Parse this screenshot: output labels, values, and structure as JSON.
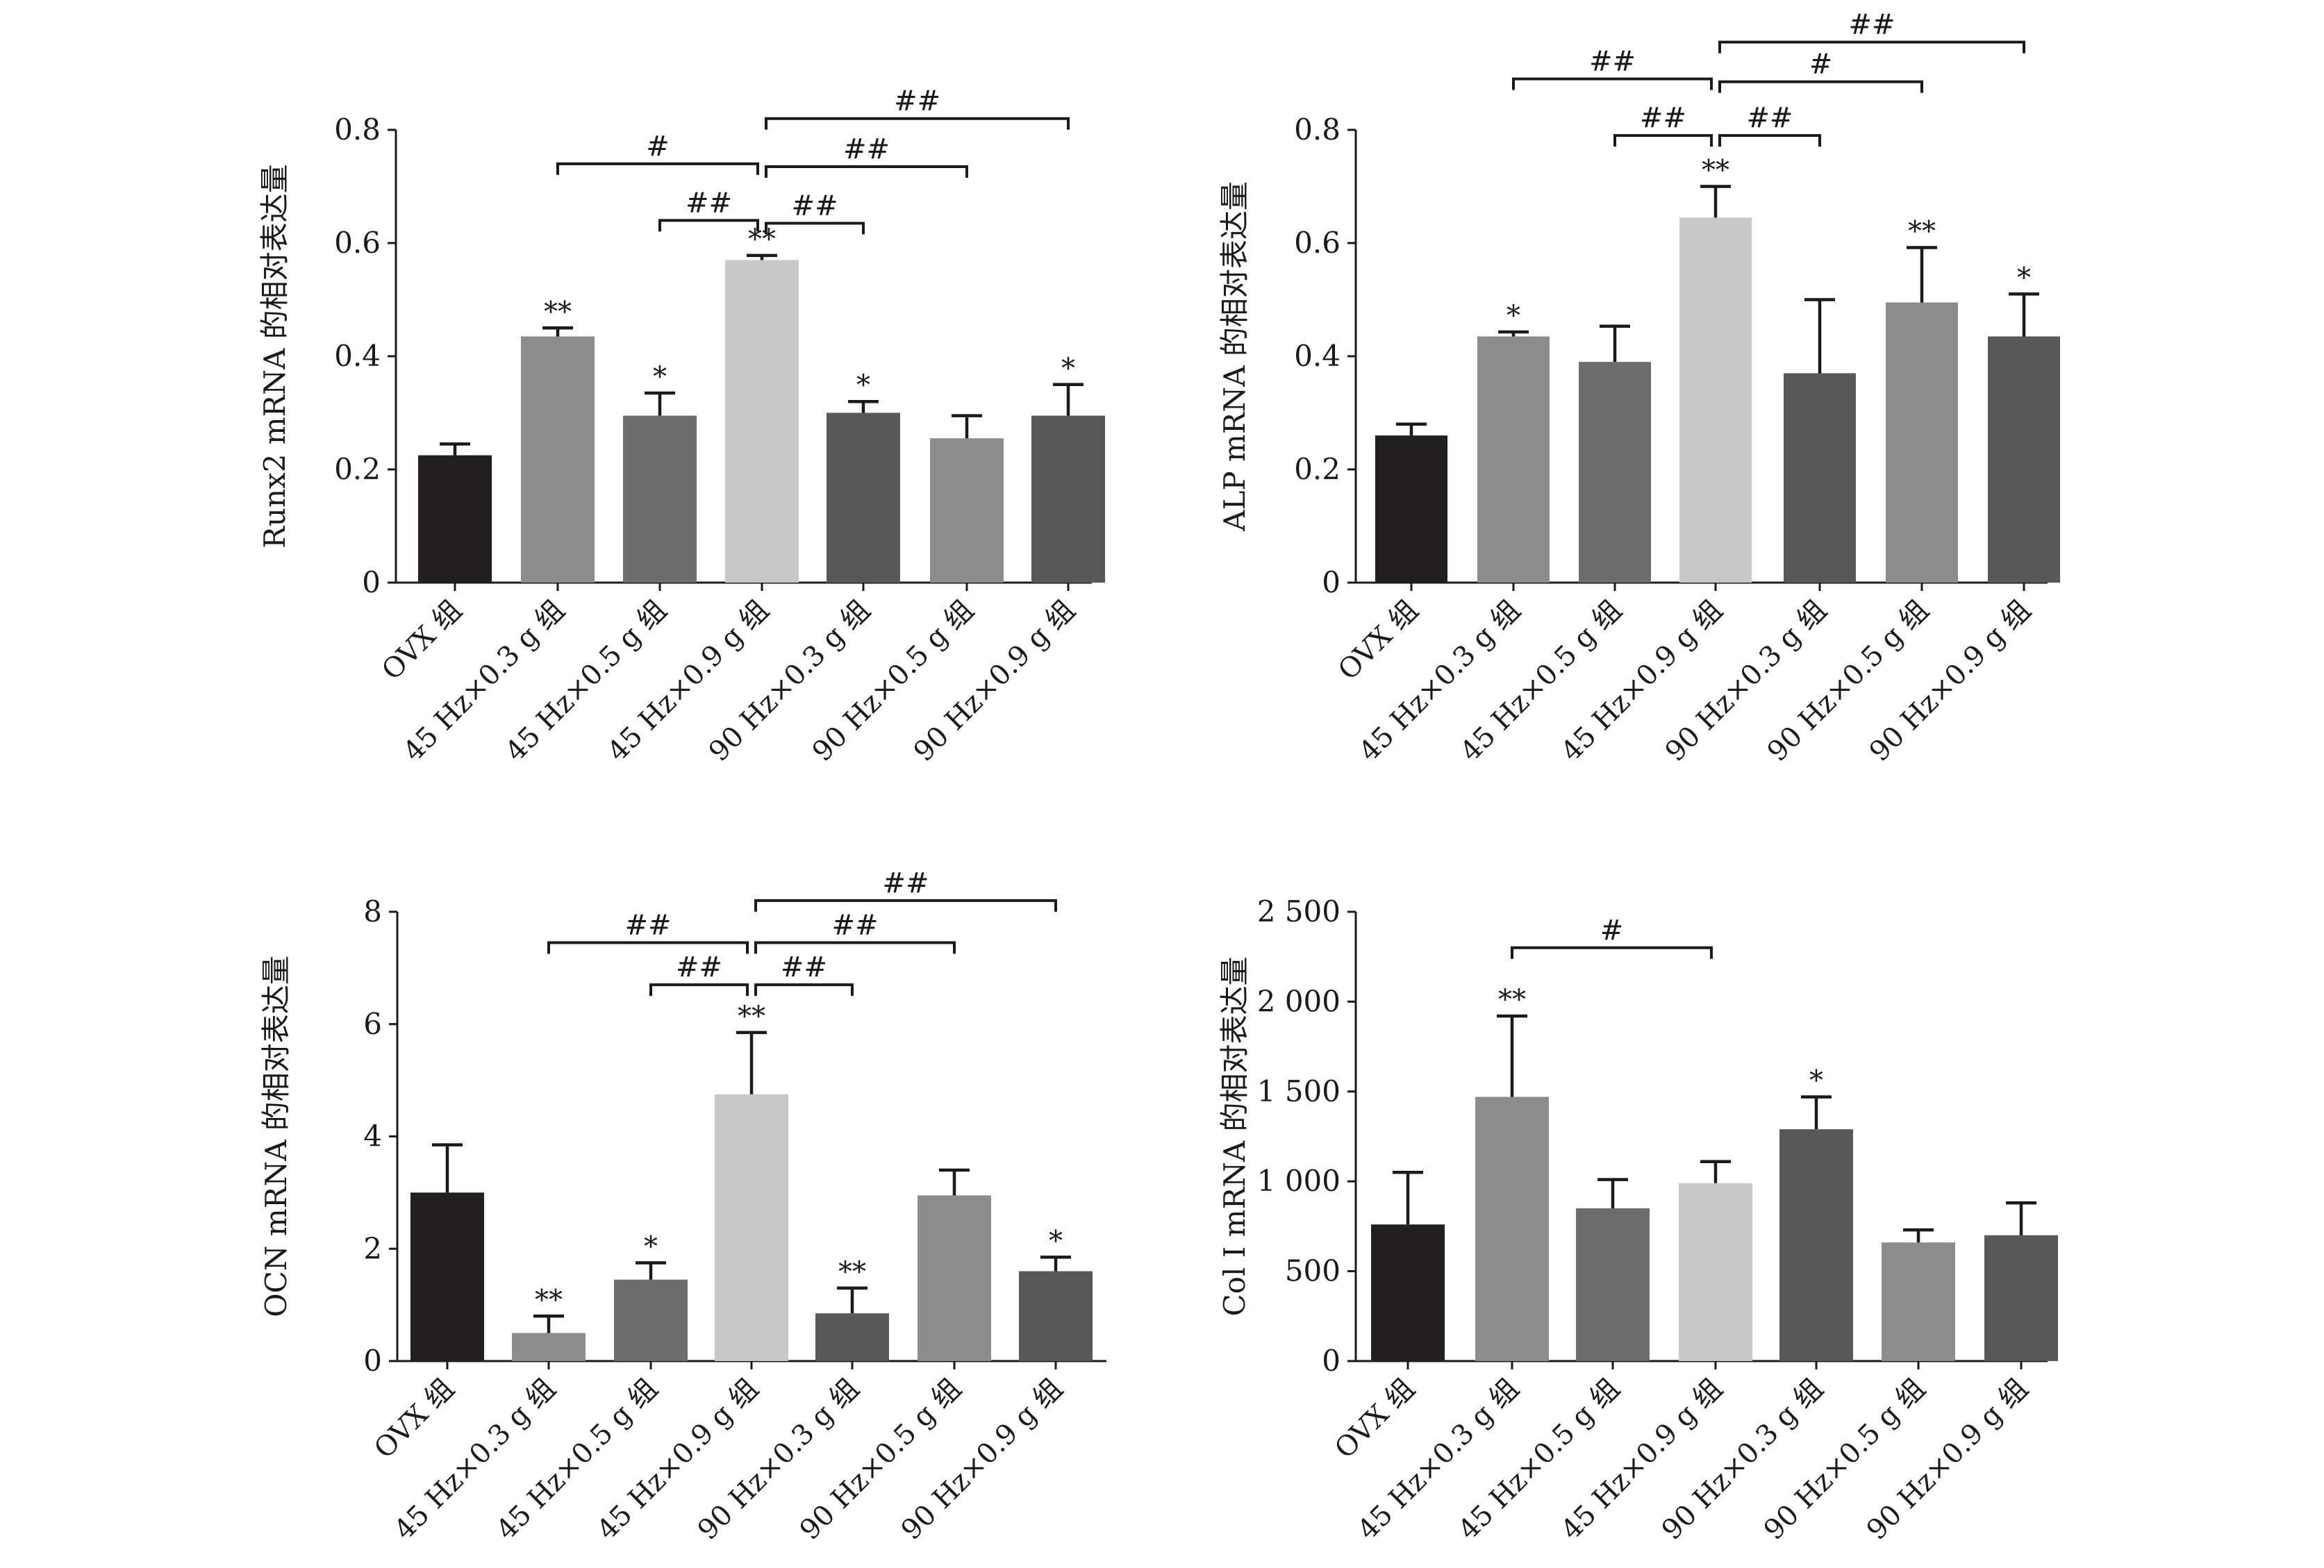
{
  "chart_data": [
    {
      "type": "bar",
      "ylabel": "Runx2 mRNA 的相对表达量",
      "categories": [
        "OVX 组",
        "45 Hz×0.3 g 组",
        "45 Hz×0.5 g 组",
        "45 Hz×0.9 g 组",
        "90 Hz×0.3 g 组",
        "90 Hz×0.5 g 组",
        "90 Hz×0.9 g 组"
      ],
      "values": [
        0.225,
        0.435,
        0.295,
        0.57,
        0.3,
        0.255,
        0.295
      ],
      "errors": [
        0.02,
        0.015,
        0.04,
        0.008,
        0.02,
        0.04,
        0.055
      ],
      "bar_colors": [
        "#231f20",
        "#8c8c8c",
        "#6d6d6d",
        "#c8c8c8",
        "#585858",
        "#8c8c8c",
        "#585858"
      ],
      "yticks": [
        0,
        0.2,
        0.4,
        0.6,
        0.8
      ],
      "ytick_labels": [
        "0",
        "0.2",
        "0.4",
        "0.6",
        "0.8"
      ],
      "ylim": [
        0,
        0.8
      ],
      "stars": [
        "",
        "**",
        "*",
        "**",
        "*",
        "",
        "*"
      ],
      "brackets": [
        {
          "from": 3,
          "to": 4,
          "level": 0.635,
          "label": "##"
        },
        {
          "from": 2,
          "to": 3,
          "level": 0.64,
          "label": "##"
        },
        {
          "from": 3,
          "to": 5,
          "level": 0.735,
          "label": "##"
        },
        {
          "from": 1,
          "to": 3,
          "level": 0.74,
          "label": "#"
        },
        {
          "from": 3,
          "to": 6,
          "level": 0.82,
          "label": "##"
        }
      ]
    },
    {
      "type": "bar",
      "ylabel": "ALP mRNA 的相对表达量",
      "categories": [
        "OVX 组",
        "45 Hz×0.3 g 组",
        "45 Hz×0.5 g 组",
        "45 Hz×0.9 g 组",
        "90 Hz×0.3 g 组",
        "90 Hz×0.5 g 组",
        "90 Hz×0.9 g 组"
      ],
      "values": [
        0.26,
        0.435,
        0.39,
        0.645,
        0.37,
        0.495,
        0.435
      ],
      "errors": [
        0.02,
        0.008,
        0.063,
        0.055,
        0.13,
        0.097,
        0.075
      ],
      "bar_colors": [
        "#231f20",
        "#8c8c8c",
        "#6d6d6d",
        "#c8c8c8",
        "#585858",
        "#8c8c8c",
        "#585858"
      ],
      "yticks": [
        0,
        0.2,
        0.4,
        0.6,
        0.8
      ],
      "ytick_labels": [
        "0",
        "0.2",
        "0.4",
        "0.6",
        "0.8"
      ],
      "ylim": [
        0,
        0.8
      ],
      "stars": [
        "",
        "*",
        "",
        "**",
        "",
        "**",
        "*"
      ],
      "brackets": [
        {
          "from": 3,
          "to": 4,
          "level": 0.79,
          "label": "##"
        },
        {
          "from": 2,
          "to": 3,
          "level": 0.79,
          "label": "##"
        },
        {
          "from": 3,
          "to": 5,
          "level": 0.885,
          "label": "#"
        },
        {
          "from": 1,
          "to": 3,
          "level": 0.89,
          "label": "##"
        },
        {
          "from": 3,
          "to": 6,
          "level": 0.955,
          "label": "##"
        }
      ]
    },
    {
      "type": "bar",
      "ylabel": "OCN mRNA 的相对表达量",
      "categories": [
        "OVX 组",
        "45 Hz×0.3 g 组",
        "45 Hz×0.5 g 组",
        "45 Hz×0.9 g 组",
        "90 Hz×0.3 g 组",
        "90 Hz×0.5 g 组",
        "90 Hz×0.9 g 组"
      ],
      "values": [
        3.0,
        0.5,
        1.45,
        4.75,
        0.85,
        2.95,
        1.6
      ],
      "errors": [
        0.85,
        0.3,
        0.3,
        1.1,
        0.45,
        0.45,
        0.25
      ],
      "bar_colors": [
        "#231f20",
        "#8c8c8c",
        "#6d6d6d",
        "#c8c8c8",
        "#585858",
        "#8c8c8c",
        "#585858"
      ],
      "yticks": [
        0,
        2,
        4,
        6,
        8
      ],
      "ytick_labels": [
        "0",
        "2",
        "4",
        "6",
        "8"
      ],
      "ylim": [
        0,
        8
      ],
      "stars": [
        "",
        "**",
        "*",
        "**",
        "**",
        "",
        "*"
      ],
      "brackets": [
        {
          "from": 3,
          "to": 4,
          "level": 6.7,
          "label": "##"
        },
        {
          "from": 2,
          "to": 3,
          "level": 6.7,
          "label": "##"
        },
        {
          "from": 3,
          "to": 5,
          "level": 7.45,
          "label": "##"
        },
        {
          "from": 1,
          "to": 3,
          "level": 7.45,
          "label": "##"
        },
        {
          "from": 3,
          "to": 6,
          "level": 8.2,
          "label": "##"
        }
      ]
    },
    {
      "type": "bar",
      "ylabel": "Col I mRNA 的相对表达量",
      "categories": [
        "OVX 组",
        "45 Hz×0.3 g 组",
        "45 Hz×0.5 g 组",
        "45 Hz×0.9 g 组",
        "90 Hz×0.3 g 组",
        "90 Hz×0.5 g 组",
        "90 Hz×0.9 g 组"
      ],
      "values": [
        760,
        1470,
        850,
        990,
        1290,
        660,
        700
      ],
      "errors": [
        290,
        450,
        160,
        120,
        180,
        70,
        180
      ],
      "bar_colors": [
        "#231f20",
        "#8c8c8c",
        "#6d6d6d",
        "#c8c8c8",
        "#585858",
        "#8c8c8c",
        "#585858"
      ],
      "yticks": [
        0,
        500,
        1000,
        1500,
        2000,
        2500
      ],
      "ytick_labels": [
        "0",
        "500",
        "1 000",
        "1 500",
        "2 000",
        "2 500"
      ],
      "ylim": [
        0,
        2500
      ],
      "stars": [
        "",
        "**",
        "",
        "",
        "*",
        "",
        ""
      ],
      "brackets": [
        {
          "from": 1,
          "to": 3,
          "level": 2300,
          "label": "#"
        }
      ]
    }
  ]
}
